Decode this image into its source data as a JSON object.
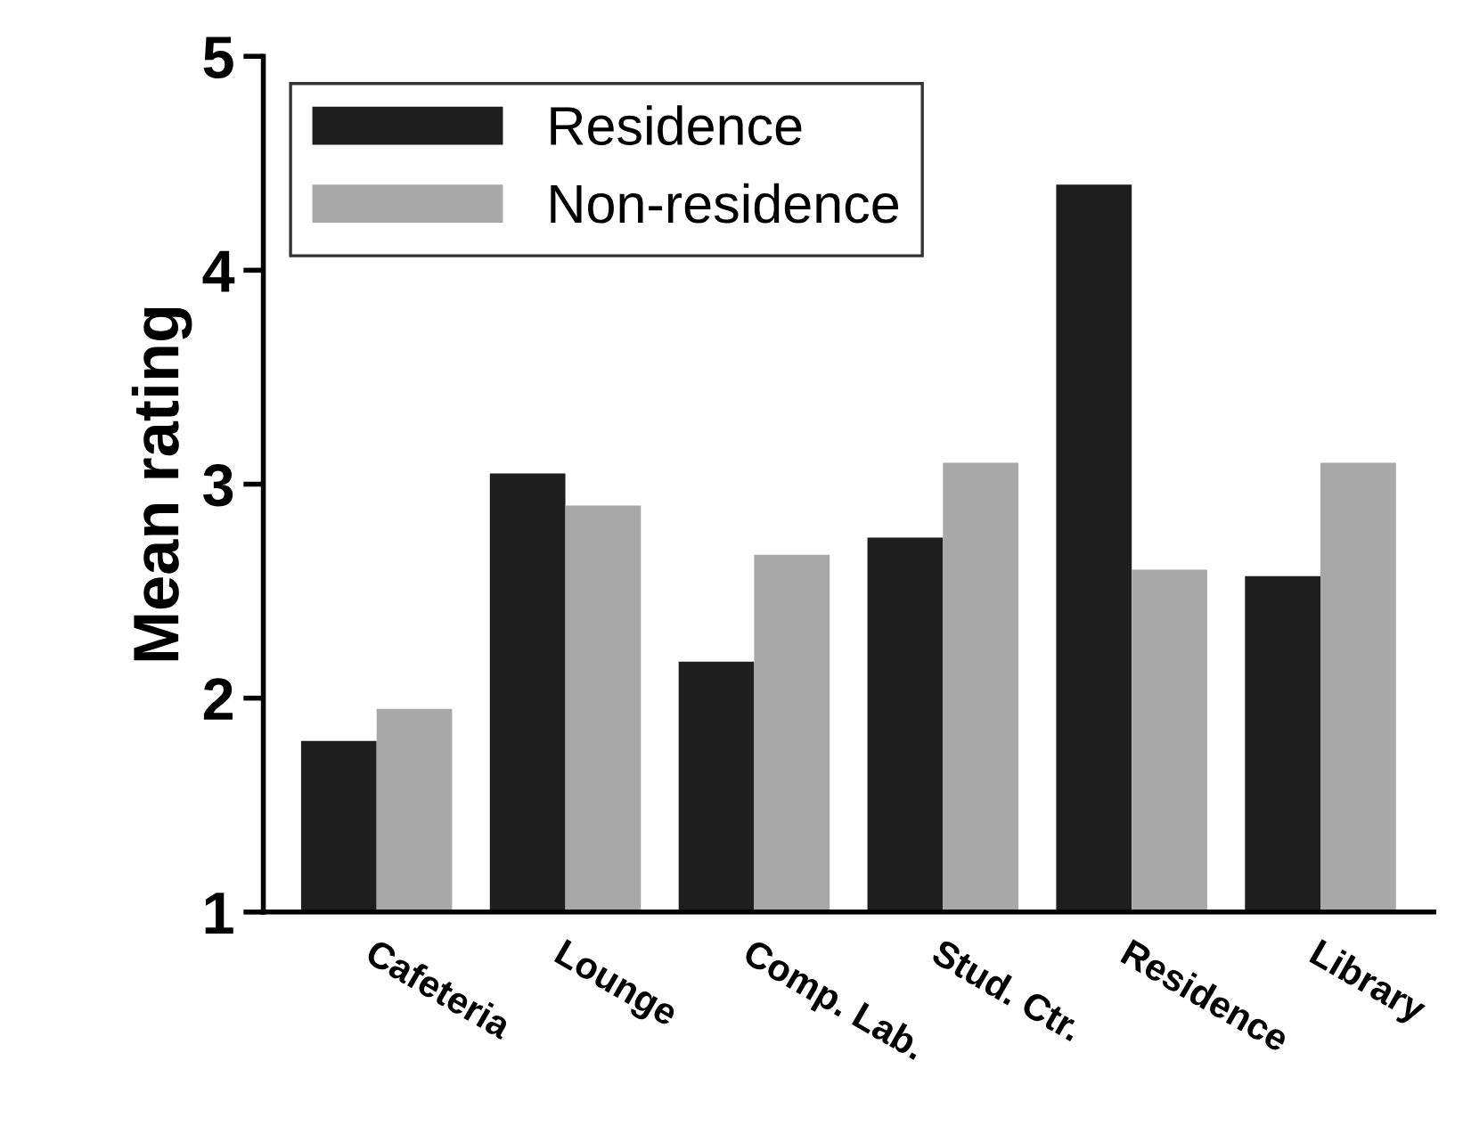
{
  "chart_data": {
    "type": "bar",
    "ylabel": "Mean rating",
    "categories": [
      "Cafeteria",
      "Lounge",
      "Comp. Lab.",
      "Stud. Ctr.",
      "Residence",
      "Library"
    ],
    "series": [
      {
        "name": "Residence",
        "color": "#1e1e1e",
        "values": [
          1.8,
          3.05,
          2.17,
          2.75,
          4.4,
          2.57
        ]
      },
      {
        "name": "Non-residence",
        "color": "#a8a8a8",
        "values": [
          1.95,
          2.9,
          2.67,
          3.1,
          2.6,
          3.1
        ]
      }
    ],
    "ylim": [
      1,
      5
    ],
    "yticks": [
      1,
      2,
      3,
      4,
      5
    ],
    "grid": false,
    "legend": "top left"
  }
}
